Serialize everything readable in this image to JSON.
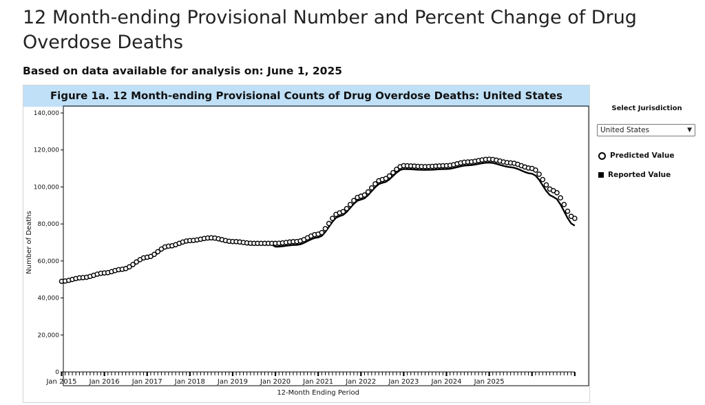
{
  "page": {
    "title": "12 Month-ending Provisional Number and Percent Change of Drug Overdose Deaths",
    "subtitle": "Based on data available for analysis on: June 1, 2025"
  },
  "figure": {
    "title": "Figure 1a. 12 Month-ending Provisional Counts of Drug Overdose Deaths: United States"
  },
  "controls": {
    "jurisdiction_label": "Select Jurisdiction",
    "jurisdiction_value": "United States",
    "legend_predicted": "Predicted Value",
    "legend_reported": "Reported Value"
  },
  "chart_data": {
    "type": "line",
    "title": "Figure 1a. 12 Month-ending Provisional Counts of Drug Overdose Deaths: United States",
    "xlabel": "12-Month Ending Period",
    "ylabel": "Number of Deaths",
    "ylim": [
      0,
      140000
    ],
    "yticks": [
      0,
      20000,
      40000,
      60000,
      80000,
      100000,
      120000,
      140000
    ],
    "ytick_labels": [
      "0",
      "20,000",
      "40,000",
      "60,000",
      "80,000",
      "100,000",
      "120,000",
      "140,000"
    ],
    "xtick_labels": [
      "Jan 2015",
      "Jan 2016",
      "Jan 2017",
      "Jan 2018",
      "Jan 2019",
      "Jan 2020",
      "Jan 2021",
      "Jan 2022",
      "Jan 2023",
      "Jan 2024",
      "Jan 2025"
    ],
    "start": "Jan 2015",
    "end": "Jan 2025",
    "legend": [
      "Predicted Value",
      "Reported Value"
    ],
    "anchors": [
      [
        0,
        49000
      ],
      [
        6,
        51000
      ],
      [
        12,
        53500
      ],
      [
        17,
        55500
      ],
      [
        24,
        62000
      ],
      [
        30,
        68000
      ],
      [
        36,
        71000
      ],
      [
        42,
        72500
      ],
      [
        48,
        70500
      ],
      [
        54,
        69500
      ],
      [
        60,
        69500
      ],
      [
        66,
        70500
      ],
      [
        72,
        74500
      ],
      [
        78,
        86000
      ],
      [
        84,
        95000
      ],
      [
        90,
        104000
      ],
      [
        96,
        111500
      ],
      [
        102,
        111000
      ],
      [
        108,
        111500
      ],
      [
        114,
        113500
      ],
      [
        120,
        115000
      ],
      [
        126,
        113000
      ],
      [
        132,
        110000
      ],
      [
        138,
        98000
      ],
      [
        144,
        83000
      ],
      [
        145,
        82000
      ]
    ],
    "series": [
      {
        "name": "Predicted Value",
        "style": "circles",
        "offset": [
          0,
          0,
          0
        ],
        "color": "#000000"
      },
      {
        "name": "Reported Value",
        "style": "line",
        "offset": [
          -700,
          -1800,
          -4000
        ],
        "color": "#000000"
      }
    ]
  }
}
